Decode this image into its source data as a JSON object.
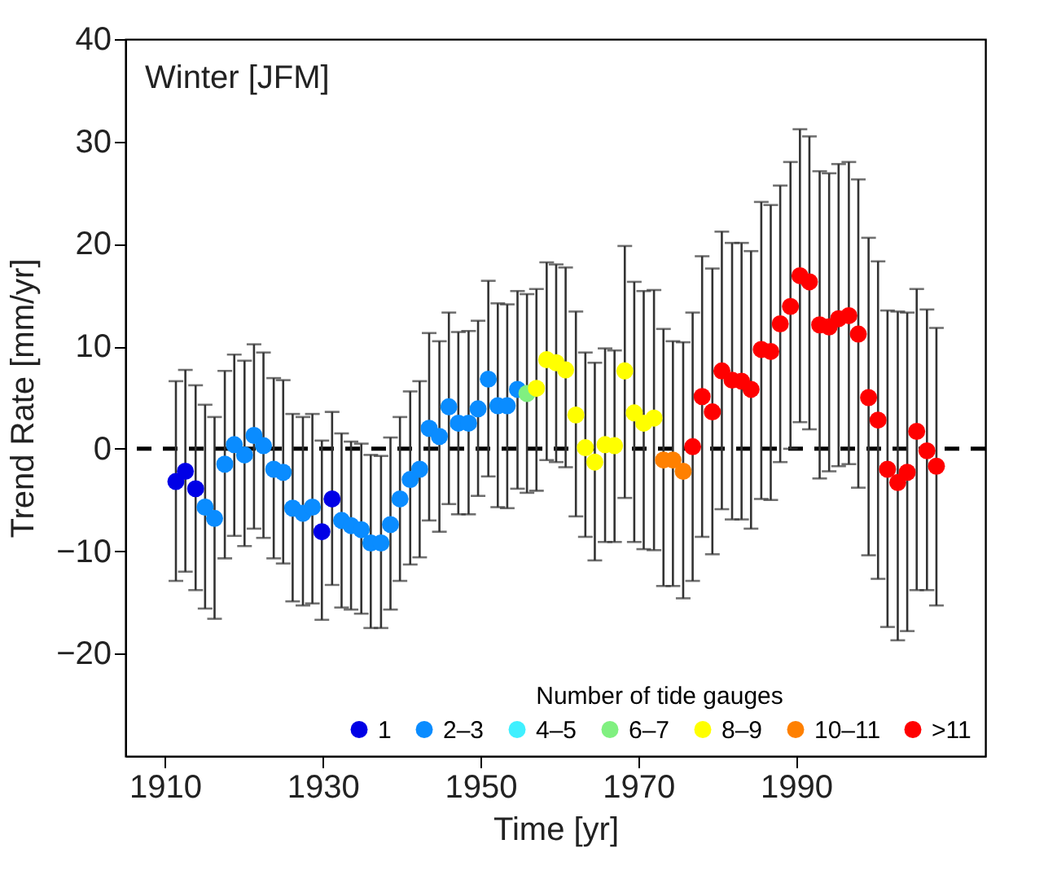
{
  "chart_data": {
    "type": "scatter",
    "xlabel": "Time [yr]",
    "ylabel": "Trend Rate [mm/yr]",
    "annotations": [
      "Winter [JFM]"
    ],
    "legend_title": "Number of tide gauges",
    "legend": "bottom right",
    "marker": "circle",
    "grid": false,
    "xlim": [
      1905,
      2014
    ],
    "xticks": [
      1910,
      1930,
      1950,
      1970,
      1990
    ],
    "ylim": [
      -30,
      40
    ],
    "yticks": [
      -20,
      -10,
      0,
      10,
      20,
      30,
      40
    ],
    "ref_lines": [
      {
        "axis": "y",
        "value": 0,
        "color": "#000000",
        "line_style": "dashed"
      }
    ],
    "series": [
      {
        "name": "1",
        "color": "#0000e6",
        "x": [
          1911.4,
          1912.6,
          1913.9,
          1929.9,
          1931.2
        ],
        "values": [
          -3.2,
          -2.2,
          -3.9,
          -8.1,
          -4.9
        ],
        "errors": [
          [
            -12.9,
            6.6
          ],
          [
            -12.0,
            7.7
          ],
          [
            -13.8,
            6.2
          ],
          [
            -16.7,
            0.8
          ],
          [
            -13.3,
            3.6
          ]
        ]
      },
      {
        "name": "2–3",
        "color": "#0a8cff",
        "x": [
          1915.1,
          1916.3,
          1917.6,
          1918.8,
          1920.1,
          1921.3,
          1922.5,
          1923.8,
          1925.0,
          1926.2,
          1927.5,
          1928.7,
          1932.4,
          1933.6,
          1934.9,
          1936.1,
          1937.4,
          1938.6,
          1939.8,
          1941.1,
          1942.3,
          1943.5,
          1944.8,
          1946.0,
          1947.2,
          1948.5,
          1949.7,
          1951.0,
          1952.2,
          1953.4,
          1954.7
        ],
        "values": [
          -5.7,
          -6.8,
          -1.5,
          0.4,
          -0.6,
          1.3,
          0.3,
          -2.0,
          -2.3,
          -5.8,
          -6.3,
          -5.7,
          -7.0,
          -7.5,
          -7.9,
          -9.2,
          -9.2,
          -7.4,
          -4.9,
          -3.0,
          -2.0,
          2.0,
          1.2,
          4.1,
          2.5,
          2.5,
          3.9,
          6.8,
          4.2,
          4.2,
          5.8
        ],
        "errors": [
          [
            -15.6,
            4.3
          ],
          [
            -16.6,
            3.1
          ],
          [
            -10.7,
            7.6
          ],
          [
            -8.5,
            9.2
          ],
          [
            -9.5,
            8.6
          ],
          [
            -7.8,
            10.2
          ],
          [
            -8.7,
            9.4
          ],
          [
            -10.7,
            6.9
          ],
          [
            -11.2,
            6.7
          ],
          [
            -14.9,
            3.4
          ],
          [
            -15.3,
            3.1
          ],
          [
            -15.1,
            3.4
          ],
          [
            -15.5,
            1.5
          ],
          [
            -15.7,
            0.7
          ],
          [
            -16.1,
            0.5
          ],
          [
            -17.5,
            -0.6
          ],
          [
            -17.5,
            -0.7
          ],
          [
            -15.7,
            1.1
          ],
          [
            -12.9,
            3.1
          ],
          [
            -11.3,
            5.6
          ],
          [
            -10.6,
            6.6
          ],
          [
            -7.0,
            11.3
          ],
          [
            -8.1,
            10.5
          ],
          [
            -5.4,
            13.3
          ],
          [
            -6.4,
            11.4
          ],
          [
            -6.4,
            11.5
          ],
          [
            -4.6,
            12.5
          ],
          [
            -2.7,
            16.4
          ],
          [
            -5.7,
            14.2
          ],
          [
            -5.8,
            14.1
          ],
          [
            -3.9,
            15.4
          ]
        ]
      },
      {
        "name": "4–5",
        "color": "#40f0ff"
      },
      {
        "name": "6–7",
        "color": "#80f080",
        "x": [
          1955.9
        ],
        "values": [
          5.4
        ],
        "errors": [
          [
            -4.3,
            15.1
          ]
        ]
      },
      {
        "name": "8–9",
        "color": "#ffff00",
        "x": [
          1957.1,
          1958.4,
          1959.6,
          1960.8,
          1962.1,
          1963.3,
          1964.5,
          1965.8,
          1967.0,
          1968.3,
          1969.5,
          1970.7,
          1972.0
        ],
        "values": [
          5.9,
          8.7,
          8.4,
          7.7,
          3.3,
          0.1,
          -1.3,
          0.4,
          0.3,
          7.6,
          3.5,
          2.5,
          3.0
        ],
        "errors": [
          [
            -4.1,
            15.6
          ],
          [
            -1.1,
            18.2
          ],
          [
            -1.3,
            18.0
          ],
          [
            -1.8,
            17.7
          ],
          [
            -6.6,
            13.4
          ],
          [
            -8.6,
            9.4
          ],
          [
            -10.9,
            8.4
          ],
          [
            -9.1,
            9.8
          ],
          [
            -9.1,
            9.6
          ],
          [
            -4.8,
            19.8
          ],
          [
            -9.1,
            16.3
          ],
          [
            -9.8,
            15.4
          ],
          [
            -9.9,
            15.5
          ]
        ]
      },
      {
        "name": "10–11",
        "color": "#ff8000",
        "x": [
          1973.2,
          1974.4,
          1975.7
        ],
        "values": [
          -1.1,
          -1.1,
          -2.2
        ],
        "errors": [
          [
            -13.4,
            11.7
          ],
          [
            -13.4,
            10.5
          ],
          [
            -14.6,
            10.4
          ]
        ]
      },
      {
        "name": ">11",
        "color": "#ff0000",
        "x": [
          1976.9,
          1978.1,
          1979.4,
          1980.6,
          1981.9,
          1983.1,
          1984.3,
          1985.6,
          1986.8,
          1988.0,
          1989.3,
          1990.5,
          1991.7,
          1993.0,
          1994.2,
          1995.4,
          1996.7,
          1997.9,
          1999.2,
          2000.4,
          2001.6,
          2002.9,
          2004.1,
          2005.3,
          2006.6,
          2007.8
        ],
        "values": [
          0.2,
          5.1,
          3.6,
          7.6,
          6.7,
          6.6,
          5.8,
          9.7,
          9.5,
          12.2,
          13.9,
          16.9,
          16.3,
          12.1,
          11.9,
          12.7,
          13.0,
          11.2,
          5.0,
          2.8,
          -2.0,
          -3.3,
          -2.3,
          1.7,
          -0.2,
          -1.7
        ],
        "errors": [
          [
            -12.9,
            13.3
          ],
          [
            -8.6,
            18.8
          ],
          [
            -10.3,
            17.6
          ],
          [
            -5.9,
            21.2
          ],
          [
            -6.9,
            20.1
          ],
          [
            -6.9,
            20.1
          ],
          [
            -7.8,
            19.3
          ],
          [
            -4.9,
            24.1
          ],
          [
            -5.0,
            23.8
          ],
          [
            -1.3,
            25.7
          ],
          [
            0.0,
            28.0
          ],
          [
            2.6,
            31.2
          ],
          [
            1.9,
            30.5
          ],
          [
            -2.9,
            27.1
          ],
          [
            -2.2,
            26.9
          ],
          [
            -1.7,
            27.8
          ],
          [
            -1.5,
            28.0
          ],
          [
            -3.8,
            26.3
          ],
          [
            -10.4,
            20.6
          ],
          [
            -12.7,
            18.3
          ],
          [
            -17.4,
            13.5
          ],
          [
            -18.7,
            13.4
          ],
          [
            -17.8,
            13.3
          ],
          [
            -13.8,
            15.6
          ],
          [
            -13.8,
            13.6
          ],
          [
            -15.3,
            11.8
          ]
        ]
      }
    ]
  }
}
